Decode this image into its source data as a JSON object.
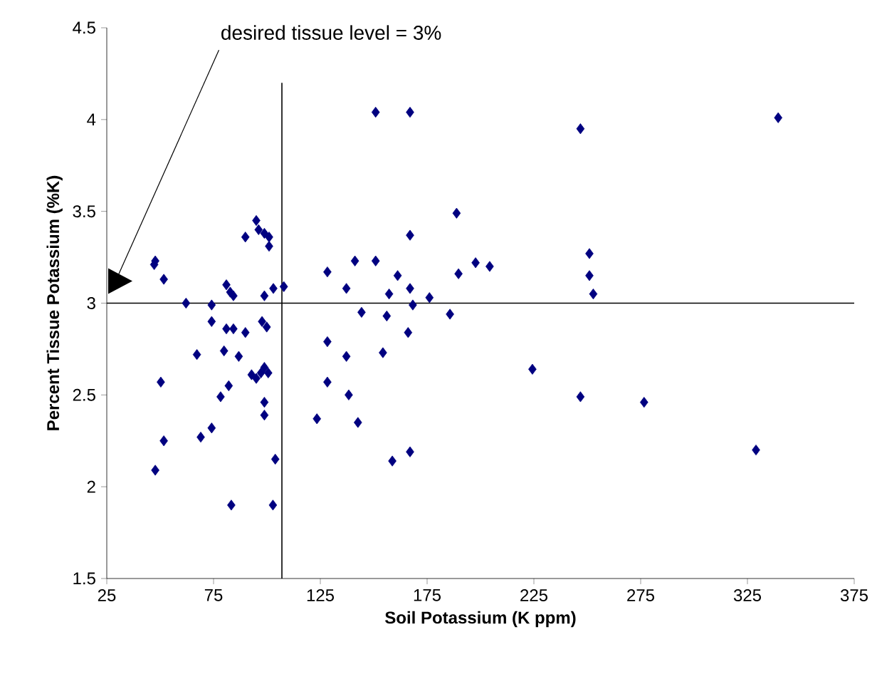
{
  "chart_data": {
    "type": "scatter",
    "xlabel": "Soil Potassium (K ppm)",
    "ylabel": "Percent Tissue Potassium (%K)",
    "annotations": [
      "desired tissue level = 3%"
    ],
    "x": [
      47.2,
      47.7,
      51.7,
      62.1,
      50.3,
      51.7,
      47.7,
      74.1,
      74.1,
      67.2,
      79.9,
      82.1,
      78.3,
      69.0,
      74.1,
      81.0,
      82.8,
      84.3,
      81.0,
      84.3,
      89.9,
      86.8,
      89.9,
      95.0,
      96.1,
      98.8,
      101.0,
      101.0,
      98.8,
      103.0,
      107.9,
      97.7,
      99.9,
      92.8,
      95.0,
      97.2,
      98.8,
      100.6,
      98.8,
      98.8,
      103.9,
      83.3,
      102.8,
      128.3,
      137.2,
      141.2,
      144.3,
      150.9,
      157.2,
      161.2,
      167.0,
      168.3,
      156.1,
      166.1,
      167.0,
      176.1,
      128.3,
      137.2,
      154.3,
      128.3,
      138.3,
      123.4,
      142.6,
      158.7,
      167.0,
      150.9,
      167.0,
      188.8,
      189.7,
      197.7,
      204.3,
      185.7,
      224.3,
      246.8,
      251.0,
      251.0,
      252.8,
      246.8,
      276.6,
      329.0,
      339.4
    ],
    "values": [
      3.21,
      3.23,
      3.13,
      3.0,
      2.57,
      2.25,
      2.09,
      2.99,
      2.9,
      2.72,
      2.74,
      2.55,
      2.49,
      2.27,
      2.32,
      3.1,
      3.06,
      3.04,
      2.86,
      2.86,
      2.84,
      2.71,
      3.36,
      3.45,
      3.4,
      3.38,
      3.36,
      3.31,
      3.04,
      3.08,
      3.09,
      2.9,
      2.87,
      2.61,
      2.59,
      2.62,
      2.65,
      2.62,
      2.46,
      2.39,
      2.15,
      1.9,
      1.9,
      3.17,
      3.08,
      3.23,
      2.95,
      3.23,
      3.05,
      3.15,
      3.08,
      2.99,
      2.93,
      2.84,
      3.37,
      3.03,
      2.79,
      2.71,
      2.73,
      2.57,
      2.5,
      2.37,
      2.35,
      2.14,
      2.19,
      4.04,
      4.04,
      3.49,
      3.16,
      3.22,
      3.2,
      2.94,
      2.64,
      3.95,
      3.27,
      3.15,
      3.05,
      2.49,
      2.46,
      2.2,
      4.01
    ],
    "color": "#000080",
    "marker": "diamond",
    "xlim": [
      25,
      375
    ],
    "xticks": [
      25,
      75,
      125,
      175,
      225,
      275,
      325,
      375
    ],
    "ylim": [
      1.5,
      4.5
    ],
    "yticks": [
      1.5,
      2,
      2.5,
      3,
      3.5,
      4,
      4.5
    ],
    "ref_lines": [
      {
        "axis": "y",
        "value": 3,
        "color": "#000000"
      },
      {
        "axis": "x",
        "value": 107,
        "color": "#000000"
      }
    ],
    "grid": false
  }
}
